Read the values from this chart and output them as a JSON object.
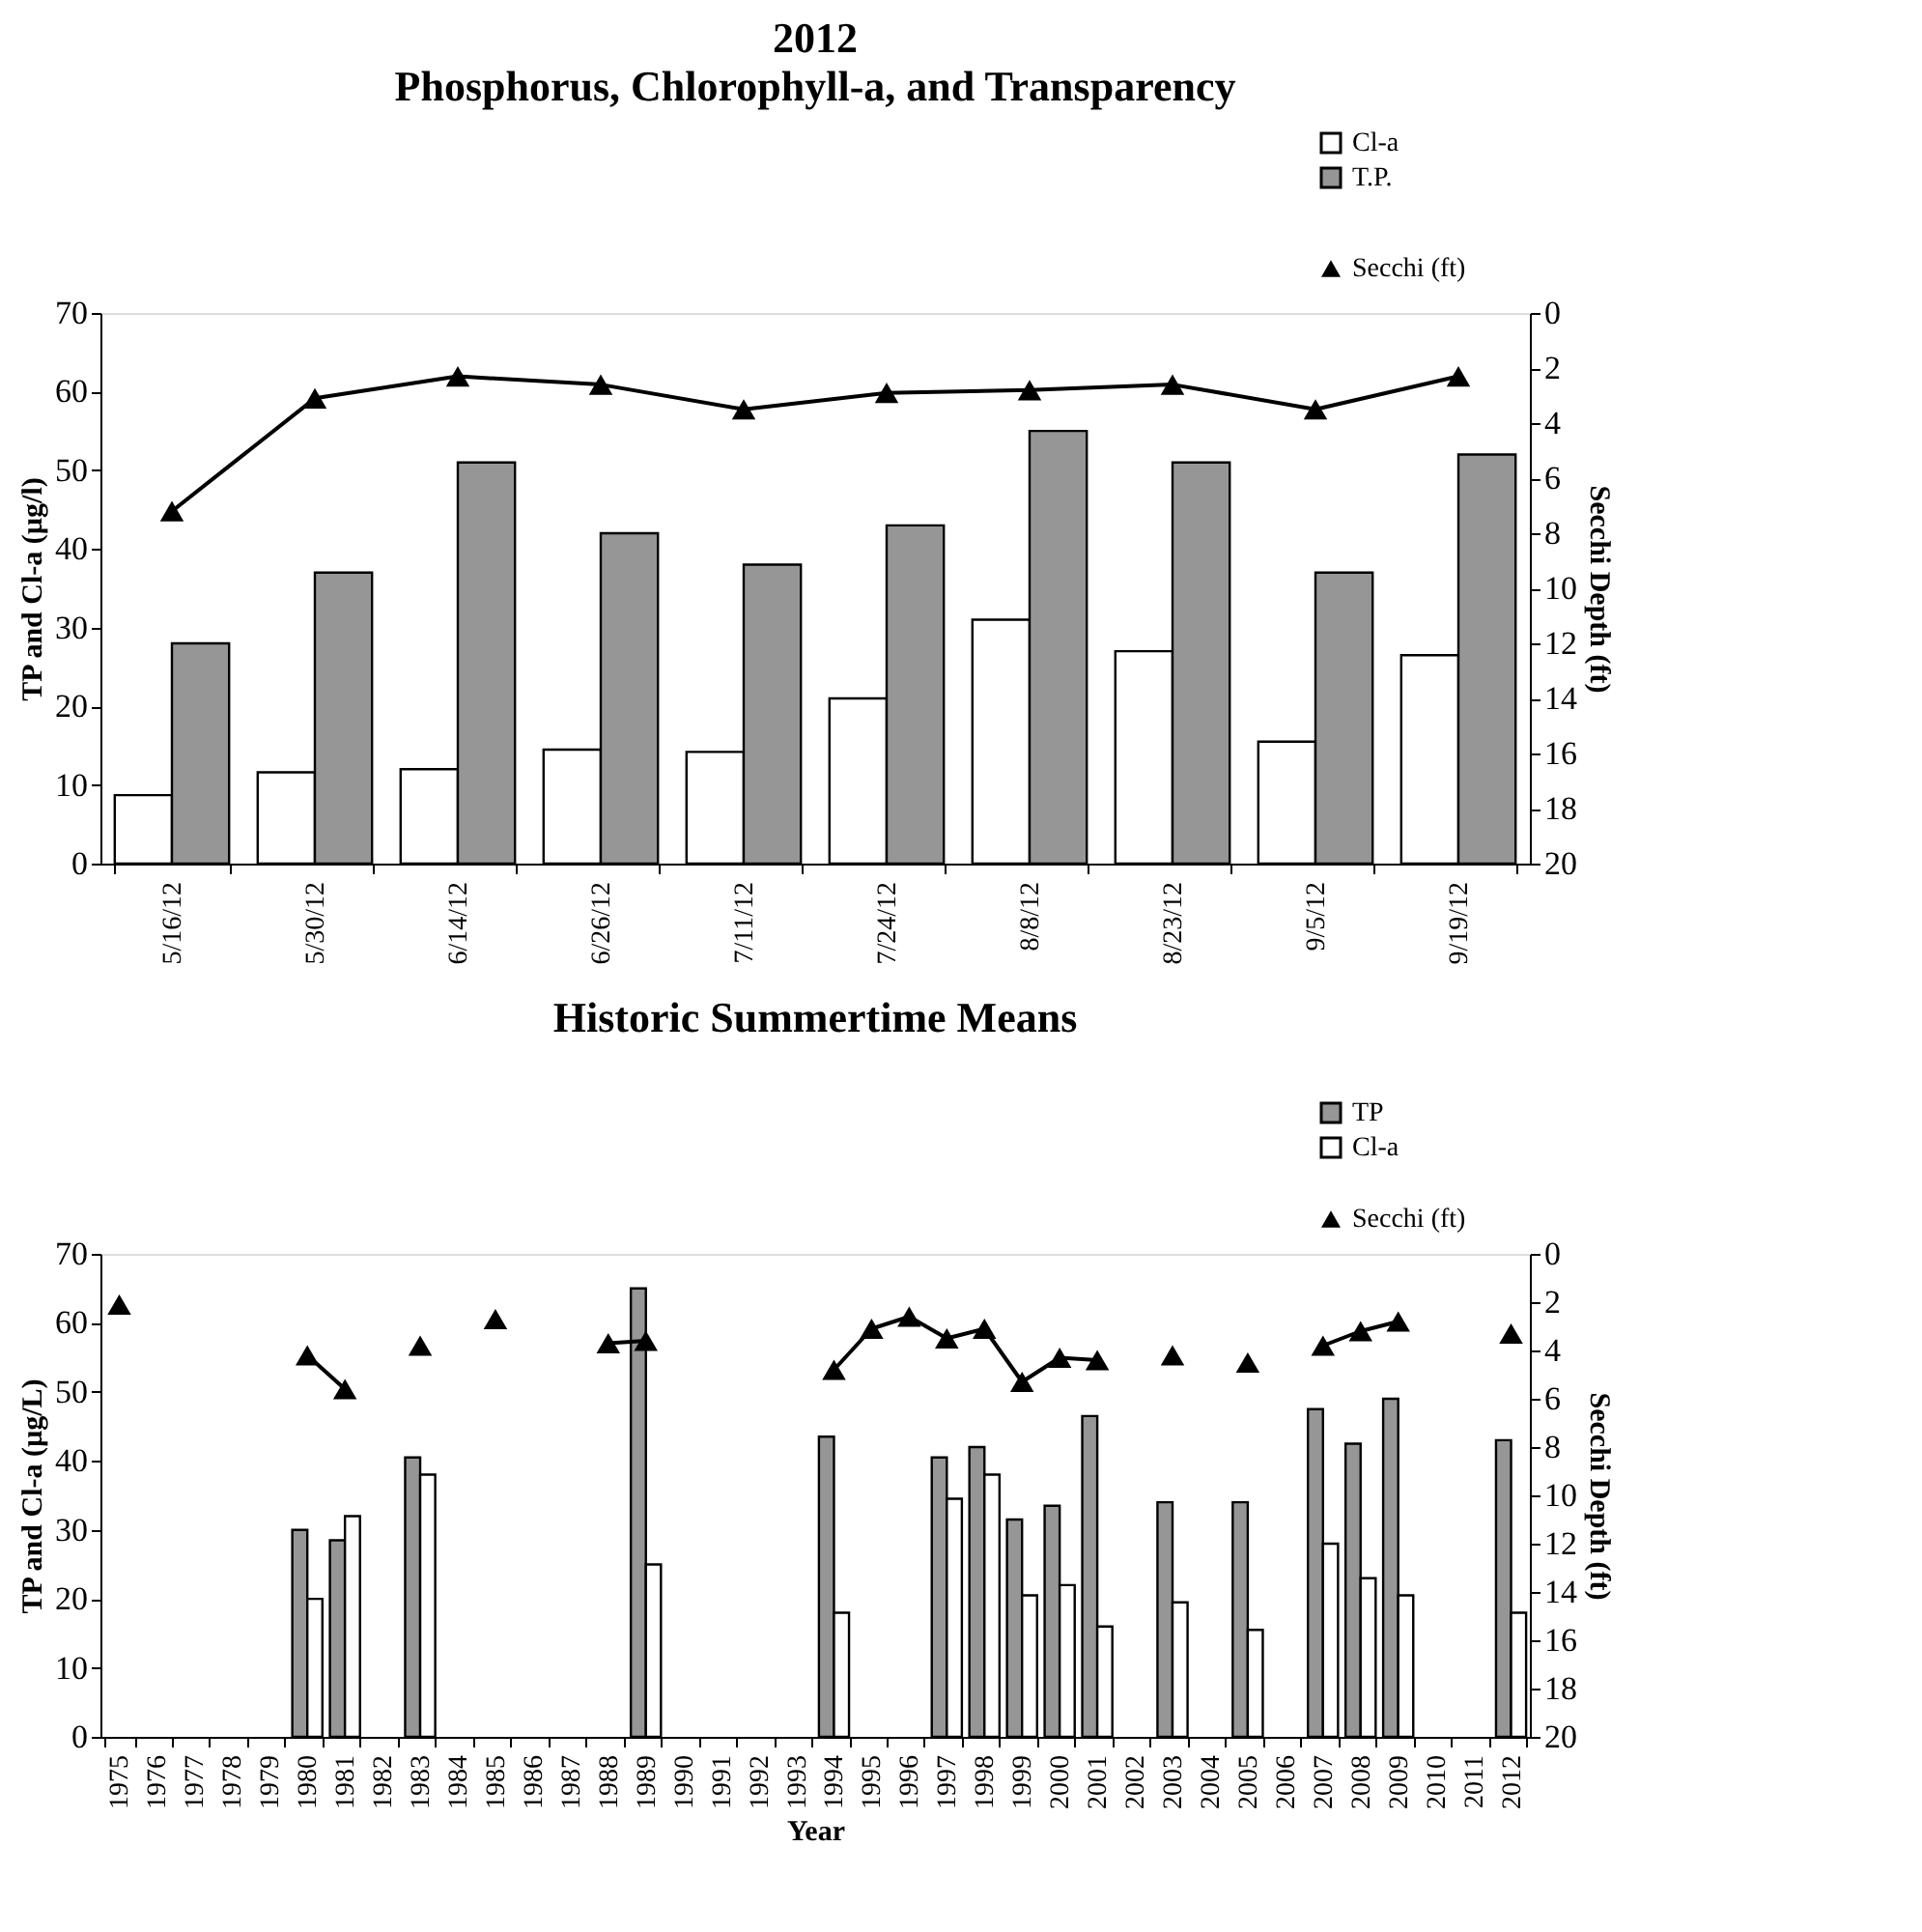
{
  "chart_data": [
    {
      "type": "bar",
      "title": "2012",
      "subtitle": "Phosphorus, Chlorophyll-a, and Transparency",
      "ylabel": "TP and Cl-a (µg/l)",
      "y2label": "Secchi Depth (ft)",
      "categories": [
        "5/16/12",
        "5/30/12",
        "6/14/12",
        "6/26/12",
        "7/11/12",
        "7/24/12",
        "8/8/12",
        "8/23/12",
        "9/5/12",
        "9/19/12"
      ],
      "series": [
        {
          "name": "Cl-a",
          "color": "#ffffff",
          "values": [
            8.7,
            11.6,
            12,
            14.5,
            14.2,
            21,
            31,
            27,
            15.5,
            26.5
          ]
        },
        {
          "name": "T.P.",
          "color": "#969696",
          "values": [
            28,
            37,
            51,
            42,
            38,
            43,
            55,
            51,
            37,
            52
          ]
        },
        {
          "name": "Secchi (ft)",
          "type": "line",
          "axis": "y2",
          "color": "#000000",
          "marker": "triangle",
          "line_style": "solid",
          "values": [
            7.2,
            3.1,
            2.3,
            2.6,
            3.5,
            2.9,
            2.8,
            2.6,
            3.5,
            2.3
          ]
        }
      ],
      "ylim": [
        0,
        70
      ],
      "yticks": [
        0,
        10,
        20,
        30,
        40,
        50,
        60,
        70
      ],
      "y2lim": [
        20,
        0
      ],
      "y2ticks": [
        0,
        2,
        4,
        6,
        8,
        10,
        12,
        14,
        16,
        18,
        20
      ],
      "grid": false,
      "legend": "top right"
    },
    {
      "type": "bar",
      "title": "Historic Summertime Means",
      "xlabel": "Year",
      "ylabel": "TP and Cl-a (µg/L)",
      "y2label": "Secchi Depth (ft)",
      "categories": [
        "1975",
        "1976",
        "1977",
        "1978",
        "1979",
        "1980",
        "1981",
        "1982",
        "1983",
        "1984",
        "1985",
        "1986",
        "1987",
        "1988",
        "1989",
        "1990",
        "1991",
        "1992",
        "1993",
        "1994",
        "1995",
        "1996",
        "1997",
        "1998",
        "1999",
        "2000",
        "2001",
        "2002",
        "2003",
        "2004",
        "2005",
        "2006",
        "2007",
        "2008",
        "2009",
        "2010",
        "2011",
        "2012"
      ],
      "series": [
        {
          "name": "TP",
          "color": "#969696",
          "values": [
            null,
            null,
            null,
            null,
            null,
            30,
            28.5,
            null,
            40.5,
            null,
            null,
            null,
            null,
            null,
            65,
            null,
            null,
            null,
            null,
            43.5,
            null,
            null,
            40.5,
            42,
            31.5,
            33.5,
            46.5,
            null,
            34,
            null,
            34,
            null,
            47.5,
            42.5,
            49,
            null,
            null,
            43
          ]
        },
        {
          "name": "Cl-a",
          "color": "#ffffff",
          "values": [
            null,
            null,
            null,
            null,
            null,
            20,
            32,
            null,
            38,
            null,
            null,
            null,
            null,
            null,
            25,
            null,
            null,
            null,
            null,
            18,
            null,
            null,
            34.5,
            38,
            20.5,
            22,
            16,
            null,
            19.5,
            null,
            15.5,
            null,
            28,
            23,
            20.5,
            null,
            null,
            18
          ]
        },
        {
          "name": "Secchi (ft)",
          "type": "line",
          "axis": "y2",
          "color": "#000000",
          "marker": "triangle",
          "line_style": "solid",
          "values": [
            2.1,
            null,
            null,
            null,
            null,
            4.2,
            5.6,
            null,
            3.8,
            null,
            2.7,
            null,
            null,
            3.7,
            3.6,
            null,
            null,
            null,
            null,
            4.8,
            3.1,
            2.6,
            3.5,
            3.1,
            5.3,
            4.3,
            4.4,
            null,
            4.2,
            null,
            4.5,
            null,
            3.8,
            3.2,
            2.8,
            null,
            null,
            3.3
          ]
        }
      ],
      "ylim": [
        0,
        70
      ],
      "yticks": [
        0,
        10,
        20,
        30,
        40,
        50,
        60,
        70
      ],
      "y2lim": [
        20,
        0
      ],
      "y2ticks": [
        0,
        2,
        4,
        6,
        8,
        10,
        12,
        14,
        16,
        18,
        20
      ],
      "grid": false,
      "legend": "top right"
    }
  ]
}
